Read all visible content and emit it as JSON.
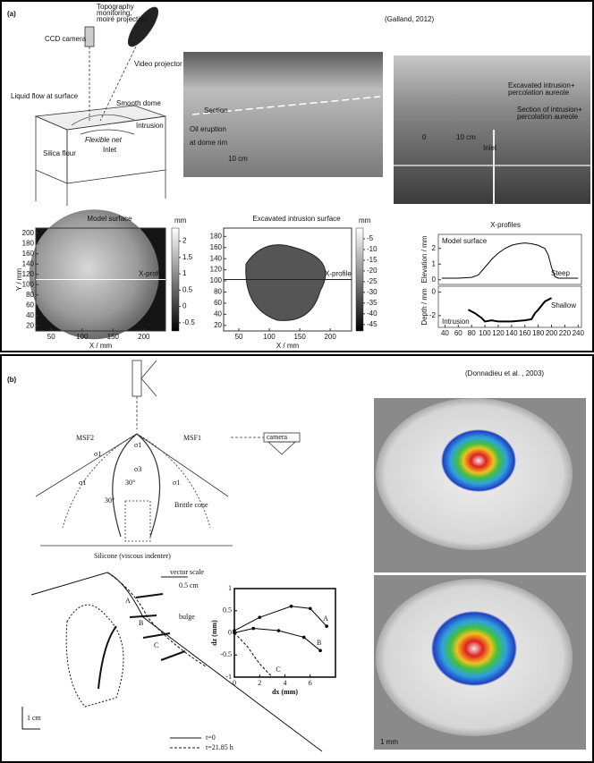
{
  "panel_a": {
    "label": "(a)",
    "citation": "(Galland, 2012)",
    "schematic": {
      "camera": "CCD camera",
      "topography": [
        "Topography",
        "monitoring,",
        "moiré projection"
      ],
      "projector": "Video projector",
      "liquid": "Liquid flow at surface",
      "dome": "Smooth dome",
      "intrusion": "Intrusion",
      "net": "Flexible net",
      "inlet": "Inlet",
      "flour": "Silica flour"
    },
    "photo_eruption": {
      "section": "Section",
      "eruption": [
        "Oil eruption",
        "at dome rim"
      ],
      "scale": "10 cm"
    },
    "photo_excavated": {
      "excavated": [
        "Excavated intrusion+",
        "percolation aureole"
      ],
      "section": [
        "Section of intrusion+",
        "percolation aureole"
      ],
      "zero": "0",
      "scale": "10 cm",
      "inlet": "Inlet"
    },
    "model_surface": {
      "title": "Model surface",
      "unit": "mm",
      "profile": "X-profile",
      "xlabel": "X / mm",
      "ylabel": "Y / mm",
      "xlim": [
        25,
        235
      ],
      "xticks": [
        50,
        100,
        150,
        200
      ],
      "ylim": [
        10,
        210
      ],
      "yticks": [
        20,
        40,
        60,
        80,
        100,
        120,
        140,
        160,
        180,
        200
      ],
      "colorbar_lim": [
        -0.75,
        2.4
      ],
      "colorbar_ticks": [
        -0.5,
        0,
        0.5,
        1,
        1.5,
        2
      ]
    },
    "intrusion_surface": {
      "title": "Excavated intrusion surface",
      "unit": "mm",
      "profile": "X-profile",
      "xlabel": "X / mm",
      "xlim": [
        25,
        235
      ],
      "xticks": [
        50,
        100,
        150,
        200
      ],
      "ylim": [
        10,
        195
      ],
      "yticks": [
        20,
        40,
        60,
        80,
        100,
        120,
        140,
        160,
        180
      ],
      "colorbar_lim": [
        -48,
        0
      ],
      "colorbar_ticks": [
        -45,
        -40,
        -35,
        -30,
        -25,
        -20,
        -15,
        -10,
        -5
      ]
    },
    "profiles": {
      "title": "X-profiles",
      "xlim": [
        30,
        245
      ],
      "xticks": [
        40,
        60,
        80,
        100,
        120,
        140,
        160,
        180,
        200,
        220,
        240
      ],
      "top": {
        "name": "Model surface",
        "note": "Steep",
        "ylabel": "Elevation / mm",
        "ylim": [
          -0.3,
          2.9
        ],
        "yticks": [
          0,
          1,
          2
        ],
        "x": [
          35,
          60,
          80,
          90,
          100,
          110,
          120,
          130,
          140,
          150,
          160,
          170,
          180,
          190,
          195,
          200,
          205,
          210,
          240
        ],
        "values": [
          0.1,
          0.1,
          0.15,
          0.3,
          0.8,
          1.3,
          1.7,
          2.0,
          2.2,
          2.3,
          2.35,
          2.3,
          2.2,
          2.0,
          1.6,
          0.8,
          0.2,
          0.1,
          0.1
        ]
      },
      "bottom": {
        "name": "Intrusion",
        "note": "Shallow",
        "ylabel": "Depth / mm",
        "ylim": [
          -3,
          0.5
        ],
        "yticks": [
          -2,
          0
        ],
        "x": [
          75,
          85,
          95,
          100,
          110,
          120,
          140,
          160,
          170,
          175,
          180,
          190,
          200
        ],
        "values": [
          -1.5,
          -1.8,
          -2.2,
          -2.5,
          -2.4,
          -2.5,
          -2.5,
          -2.4,
          -2.3,
          -1.8,
          -1.5,
          -0.8,
          -0.5
        ]
      }
    }
  },
  "panel_b": {
    "label": "(b)",
    "citation": "(Donnadieu et al. , 2003)",
    "cone": {
      "msf2": "MSF2",
      "msf1": "MSF1",
      "sigma1": "σ1",
      "sigma3": "σ3",
      "angle": "30°",
      "camera": "camera",
      "cone": "Brittle cone",
      "indenter": "Silicone (viscous indenter)"
    },
    "profile": {
      "vector_scale": "vector scale",
      "vector_length": "0.5 cm",
      "bulge": "bulge",
      "scale": "1 cm",
      "legend": [
        "t=0",
        "t=21.85 h"
      ],
      "points": [
        "A",
        "B",
        "C"
      ]
    },
    "displacement": {
      "type": "line",
      "xlabel": "dx (mm)",
      "ylabel": "dz (mm)",
      "xlim": [
        0,
        8
      ],
      "xticks": [
        0,
        2,
        4,
        6
      ],
      "ylim": [
        -1,
        1
      ],
      "yticks": [
        -1,
        -0.5,
        0,
        0.5,
        1
      ],
      "series": [
        {
          "name": "A",
          "x": [
            0,
            2,
            4.5,
            6,
            7.3
          ],
          "values": [
            0.05,
            0.35,
            0.6,
            0.55,
            0.15
          ]
        },
        {
          "name": "B",
          "x": [
            0,
            1.5,
            3.5,
            5.5,
            6.8
          ],
          "values": [
            0,
            0.1,
            0.05,
            -0.1,
            -0.4
          ]
        },
        {
          "name": "C",
          "x": [
            0,
            1,
            2,
            3
          ],
          "values": [
            0,
            -0.3,
            -0.7,
            -1
          ]
        }
      ]
    },
    "photos": {
      "scale": "1 mm"
    }
  }
}
